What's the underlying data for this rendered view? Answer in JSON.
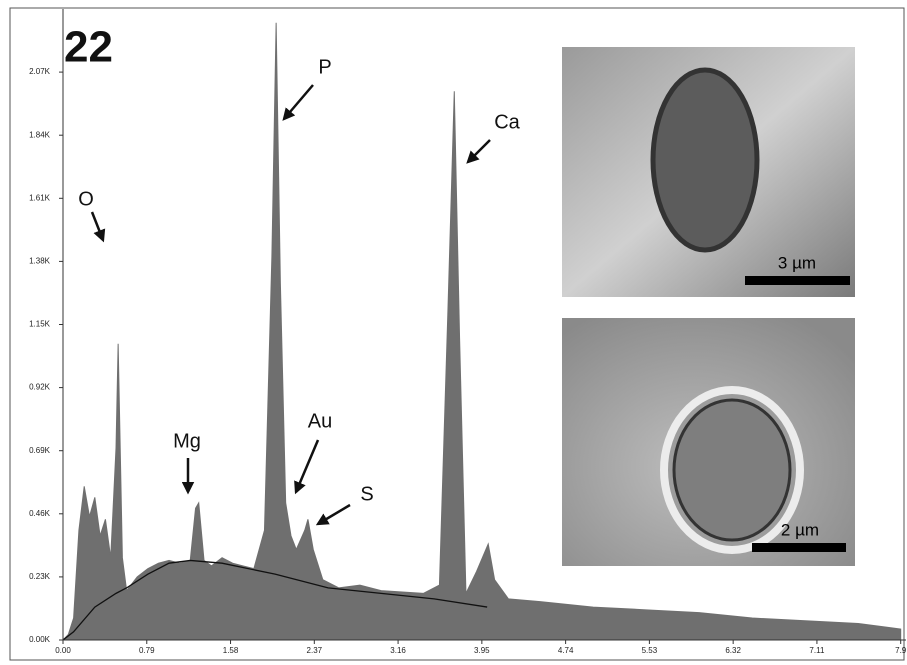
{
  "chart_data": {
    "type": "area",
    "panel_label": "22",
    "xlim": [
      0,
      7.95
    ],
    "ylim": [
      0,
      2300
    ],
    "xticks": [
      {
        "value": 0,
        "label": "0.00"
      },
      0.79,
      1.58,
      2.37,
      3.16,
      3.95,
      4.74,
      5.53,
      6.32,
      7.11,
      7.9
    ],
    "yticks": [
      {
        "value": 0,
        "label": "0.00K"
      },
      {
        "value": 230,
        "label": "0.23K"
      },
      {
        "value": 460,
        "label": "0.46K"
      },
      {
        "value": 690,
        "label": "0.69K"
      },
      {
        "value": 920,
        "label": "0.92K"
      },
      {
        "value": 1150,
        "label": "1.15K"
      },
      {
        "value": 1380,
        "label": "1.38K"
      },
      {
        "value": 1610,
        "label": "1.61K"
      },
      {
        "value": 1840,
        "label": "1.84K"
      },
      {
        "value": 2070,
        "label": "2.07K"
      }
    ],
    "series": [
      {
        "color": "#6f6f6f",
        "x": [
          0,
          0.05,
          0.1,
          0.15,
          0.2,
          0.25,
          0.3,
          0.35,
          0.4,
          0.45,
          0.5,
          0.52,
          0.56,
          0.6,
          0.7,
          0.8,
          0.9,
          1.0,
          1.1,
          1.2,
          1.25,
          1.28,
          1.33,
          1.4,
          1.5,
          1.6,
          1.7,
          1.8,
          1.9,
          1.97,
          2.01,
          2.05,
          2.1,
          2.15,
          2.2,
          2.28,
          2.31,
          2.36,
          2.45,
          2.6,
          2.8,
          3.0,
          3.2,
          3.4,
          3.55,
          3.63,
          3.69,
          3.74,
          3.8,
          3.9,
          4.01,
          4.07,
          4.2,
          4.5,
          5.0,
          5.5,
          6.0,
          6.5,
          7.0,
          7.5,
          7.9
        ],
        "values": [
          0,
          20,
          80,
          400,
          560,
          450,
          520,
          380,
          440,
          300,
          700,
          1080,
          300,
          180,
          230,
          260,
          280,
          290,
          280,
          290,
          480,
          500,
          290,
          270,
          300,
          280,
          270,
          260,
          400,
          1400,
          2250,
          1300,
          500,
          380,
          330,
          400,
          440,
          330,
          220,
          190,
          200,
          180,
          175,
          170,
          200,
          1200,
          2000,
          1100,
          170,
          250,
          350,
          220,
          150,
          140,
          120,
          110,
          100,
          80,
          70,
          60,
          40
        ]
      },
      {
        "color": "#111111",
        "x": [
          0,
          0.1,
          0.3,
          0.5,
          0.6,
          0.8,
          1.0,
          1.2,
          1.5,
          2.0,
          2.5,
          3.0,
          3.5,
          4.0
        ],
        "values": [
          0,
          30,
          120,
          170,
          190,
          240,
          280,
          290,
          280,
          240,
          190,
          170,
          150,
          120
        ]
      }
    ],
    "annotations": [
      "O",
      "P",
      "Ca",
      "Mg",
      "Au",
      "S"
    ],
    "insets": [
      {
        "scale_label": "3 µm"
      },
      {
        "scale_label": "2 µm"
      }
    ]
  }
}
